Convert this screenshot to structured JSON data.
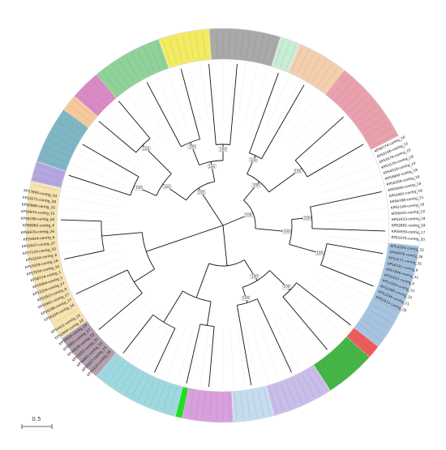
{
  "scale_bar": {
    "label": "0.5"
  },
  "support_value": "100",
  "node_count": 17,
  "segments": [
    {
      "id": "lavender",
      "color": "#b4a7e0",
      "start": 283,
      "end": 289
    },
    {
      "id": "teal",
      "color": "#7fb6c4",
      "start": 289,
      "end": 306
    },
    {
      "id": "orange",
      "color": "#f6c99a",
      "start": 306,
      "end": 311
    },
    {
      "id": "magenta",
      "color": "#d98ac4",
      "start": 311,
      "end": 320
    },
    {
      "id": "green",
      "color": "#8fd29a",
      "start": 320,
      "end": 341
    },
    {
      "id": "yellow",
      "color": "#f3ec62",
      "start": 341,
      "end": 356
    },
    {
      "id": "gray",
      "color": "#a9a9a9",
      "start": 356,
      "end": 17
    },
    {
      "id": "mint",
      "color": "#c9ecd6",
      "start": 17,
      "end": 23
    },
    {
      "id": "peach",
      "color": "#f4cfae",
      "start": 23,
      "end": 38
    },
    {
      "id": "pink",
      "color": "#e9a1ae",
      "start": 38,
      "end": 63
    },
    {
      "id": "white",
      "color": "#ffffff",
      "start": 63,
      "end": 96
    },
    {
      "id": "steelblue",
      "color": "#a6c3df",
      "start": 96,
      "end": 128
    },
    {
      "id": "red",
      "color": "#ee5b5b",
      "start": 128,
      "end": 132
    },
    {
      "id": "darkgreen",
      "color": "#45b545",
      "start": 132,
      "end": 147
    },
    {
      "id": "lilac",
      "color": "#c9bde9",
      "start": 147,
      "end": 165
    },
    {
      "id": "babyblue",
      "color": "#c4dcee",
      "start": 165,
      "end": 177
    },
    {
      "id": "purple",
      "color": "#d8a0dc",
      "start": 177,
      "end": 192
    },
    {
      "id": "brightgreen",
      "color": "#22dd22",
      "start": 192,
      "end": 194
    },
    {
      "id": "cyan",
      "color": "#9ed8df",
      "start": 194,
      "end": 220
    },
    {
      "id": "mauve",
      "color": "#b39fae",
      "start": 220,
      "end": 235
    },
    {
      "id": "cream",
      "color": "#f6e3b0",
      "start": 235,
      "end": 283
    }
  ],
  "tip_labels": [
    {
      "text": "KPS3294-contig_33",
      "angle": 97
    },
    {
      "text": "KPS6976-contig_36",
      "angle": 99
    },
    {
      "text": "KPS3271-contig_35",
      "angle": 101
    },
    {
      "text": "KPS6181-contig_6",
      "angle": 103
    },
    {
      "text": "KPS7806-contig_31",
      "angle": 105
    },
    {
      "text": "KPS5933-contig_6",
      "angle": 107
    },
    {
      "text": "KPS3329-contig_13",
      "angle": 109
    },
    {
      "text": "KPS2088-contig_10",
      "angle": 111
    },
    {
      "text": "KPS3294-contig_21",
      "angle": 113
    },
    {
      "text": "KPS2933-contig_29",
      "angle": 115
    },
    {
      "text": "KPS1073-contig_20",
      "angle": 94
    },
    {
      "text": "KPS5939-contig_17",
      "angle": 92
    },
    {
      "text": "KPS2801-contig_18",
      "angle": 90
    },
    {
      "text": "KPS2933-contig_18",
      "angle": 88
    },
    {
      "text": "KPS6181-contig_18",
      "angle": 86
    },
    {
      "text": "KPS2126-contig_18",
      "angle": 84
    },
    {
      "text": "KPS6198-contig_15",
      "angle": 82
    },
    {
      "text": "KPS3481-contig_18",
      "angle": 80
    },
    {
      "text": "KPS5939-contig_18",
      "angle": 78
    },
    {
      "text": "KPS6269-contig_18",
      "angle": 76
    },
    {
      "text": "KPS9840-contig_18",
      "angle": 74
    },
    {
      "text": "KPS4018-contig_14",
      "angle": 72
    },
    {
      "text": "KPS3135-contig_18",
      "angle": 70
    },
    {
      "text": "KPS3176-contig_10",
      "angle": 68
    },
    {
      "text": "KPS3198-contig_15",
      "angle": 66
    },
    {
      "text": "KPS9774-contig_16",
      "angle": 64
    },
    {
      "text": "KPS6160-contig_16",
      "angle": 242
    },
    {
      "text": "KPS9206-contig_17",
      "angle": 244
    },
    {
      "text": "KPS5901-contig_17",
      "angle": 246
    },
    {
      "text": "KPS2923-contig_9",
      "angle": 248
    },
    {
      "text": "KPS3254-contig_27",
      "angle": 250
    },
    {
      "text": "KPS5904-contig_1",
      "angle": 252
    },
    {
      "text": "KPS8724-contig_1",
      "angle": 254
    },
    {
      "text": "KPS7050-contig_10",
      "angle": 256
    },
    {
      "text": "KPS3329-contig_16",
      "angle": 258
    },
    {
      "text": "KPS3254-contig_6",
      "angle": 260
    },
    {
      "text": "KPS7133-contig_33",
      "angle": 262
    },
    {
      "text": "KPS5927-contig_27",
      "angle": 264
    },
    {
      "text": "KPS5914-contig_6",
      "angle": 266
    },
    {
      "text": "KPS6976-contig_26",
      "angle": 268
    },
    {
      "text": "KPS6961-contig_4",
      "angle": 270
    },
    {
      "text": "KPS6186-contig_20",
      "angle": 272
    },
    {
      "text": "KPS6974-contig_15",
      "angle": 274
    },
    {
      "text": "KPS6989-contig_25",
      "angle": 276
    },
    {
      "text": "KPS3271-contig_28",
      "angle": 278
    },
    {
      "text": "KPS7805-contig_34",
      "angle": 280
    },
    {
      "text": "KPS4431-contig_19",
      "angle": 238
    },
    {
      "text": "KPS2864-contig_18",
      "angle": 236
    },
    {
      "text": "KPS4926-contig_19",
      "angle": 234
    },
    {
      "text": "KPS5851-contig_17",
      "angle": 232
    },
    {
      "text": "KPS6839-contig_19",
      "angle": 230
    },
    {
      "text": "KPS2933-contig_31",
      "angle": 228
    },
    {
      "text": "KPS6841-contig_10",
      "angle": 226
    },
    {
      "text": "KPS5927-contig_13",
      "angle": 224
    },
    {
      "text": "KPS5133-contig_16",
      "angle": 222
    }
  ]
}
